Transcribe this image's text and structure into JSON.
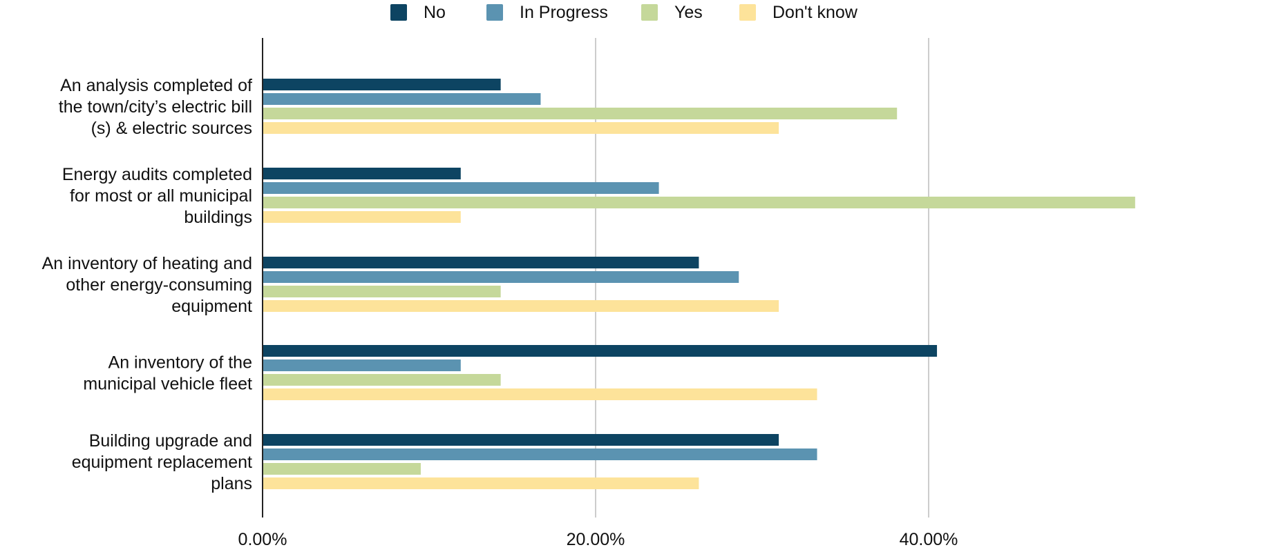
{
  "chart_data": {
    "type": "bar",
    "orientation": "horizontal",
    "categories": [
      [
        "An analysis completed of",
        "the town/city’s electric bill",
        "(s) & electric sources"
      ],
      [
        "Energy audits completed",
        "for most or all municipal",
        "buildings"
      ],
      [
        "An inventory of heating and",
        "other energy-consuming",
        "equipment"
      ],
      [
        "An inventory of the",
        "municipal vehicle fleet"
      ],
      [
        "Building upgrade and",
        "equipment replacement",
        "plans"
      ]
    ],
    "series": [
      {
        "name": "No",
        "color": "#0d4462",
        "values": [
          14.3,
          11.9,
          26.2,
          40.5,
          31.0
        ]
      },
      {
        "name": "In Progress",
        "color": "#5b93b1",
        "values": [
          16.7,
          23.8,
          28.6,
          11.9,
          33.3
        ]
      },
      {
        "name": "Yes",
        "color": "#c5d89a",
        "values": [
          38.1,
          52.4,
          14.3,
          14.3,
          9.5
        ]
      },
      {
        "name": "Don't know",
        "color": "#fde39a",
        "values": [
          31.0,
          11.9,
          31.0,
          33.3,
          26.2
        ]
      }
    ],
    "xticks": [
      0,
      20,
      40,
      60
    ],
    "xtick_labels": [
      "0.00%",
      "20.00%",
      "40.00%",
      ""
    ],
    "xlim": [
      0,
      60
    ],
    "grid": true,
    "legend_position": "top-center"
  }
}
